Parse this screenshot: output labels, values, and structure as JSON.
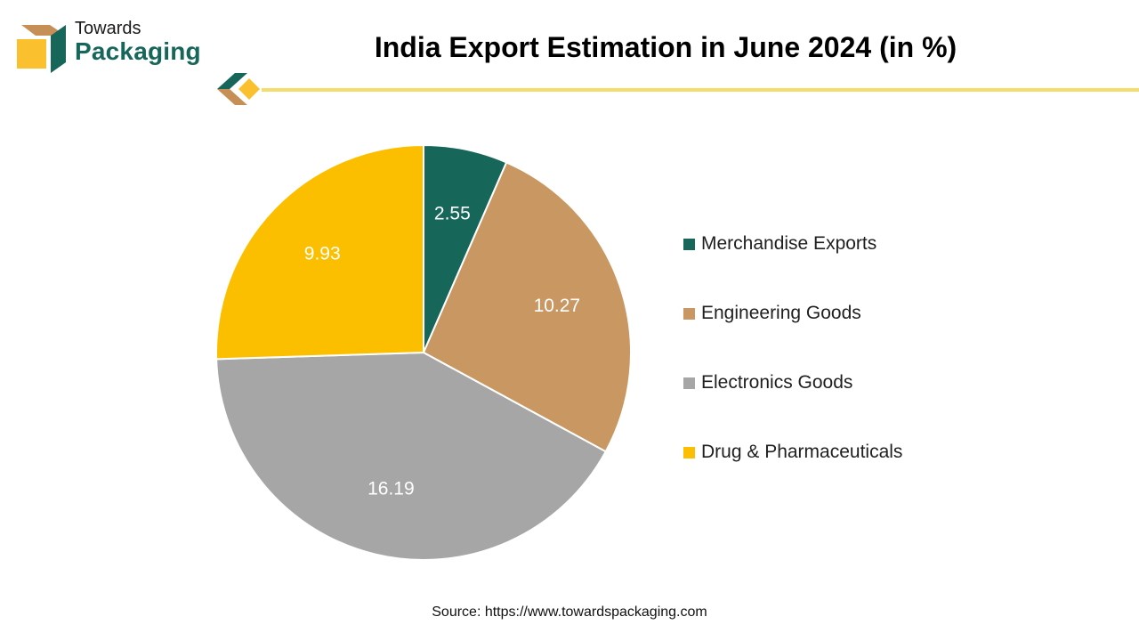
{
  "brand": {
    "line1": "Towards",
    "line2": "Packaging"
  },
  "colors": {
    "brand_green": "#17665a",
    "brand_tan": "#c68f56",
    "brand_yellow": "#fbc02d",
    "divider": "#f5dd6d"
  },
  "chart_data": {
    "type": "pie",
    "title": "India Export Estimation in June 2024 (in %)",
    "categories": [
      "Merchandise Exports",
      "Engineering Goods",
      "Electronics Goods",
      "Drug & Pharmaceuticals"
    ],
    "values": [
      2.55,
      10.27,
      16.19,
      9.93
    ],
    "data_labels": [
      "2.55",
      "10.27",
      "16.19",
      "9.93"
    ],
    "colors": [
      "#17665a",
      "#c99762",
      "#a6a6a6",
      "#fcbf00"
    ],
    "legend_position": "right"
  },
  "source": "Source: https://www.towardspackaging.com"
}
